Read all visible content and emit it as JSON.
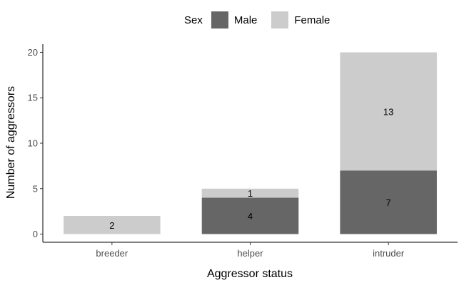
{
  "chart_data": {
    "type": "bar",
    "stacked": true,
    "categories": [
      "breeder",
      "helper",
      "intruder"
    ],
    "series": [
      {
        "name": "Male",
        "values": [
          0,
          4,
          7
        ],
        "color": "#666666"
      },
      {
        "name": "Female",
        "values": [
          2,
          1,
          13
        ],
        "color": "#cccccc"
      }
    ],
    "data_labels": [
      {
        "category": "breeder",
        "series": "Female",
        "text": "2"
      },
      {
        "category": "helper",
        "series": "Male",
        "text": "4"
      },
      {
        "category": "helper",
        "series": "Female",
        "text": "1"
      },
      {
        "category": "intruder",
        "series": "Male",
        "text": "7"
      },
      {
        "category": "intruder",
        "series": "Female",
        "text": "13"
      }
    ],
    "xlabel": "Aggressor status",
    "ylabel": "Number of aggressors",
    "ylim": [
      -0.9,
      20.9
    ],
    "yticks": [
      0,
      5,
      10,
      15,
      20
    ],
    "legend": {
      "title": "Sex",
      "position": "top"
    },
    "grid": false
  }
}
